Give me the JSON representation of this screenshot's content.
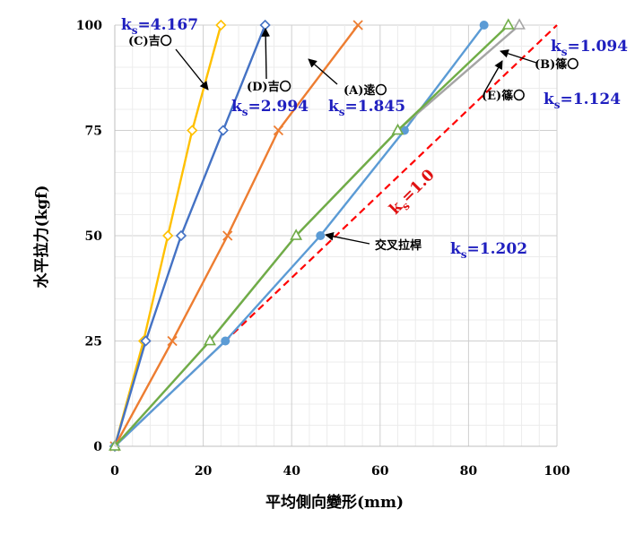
{
  "chart_data": {
    "type": "line",
    "title": "",
    "xlabel": "平均側向變形(mm)",
    "ylabel": "水平拉力(kgf)",
    "xlim": [
      0,
      100
    ],
    "ylim": [
      0,
      100
    ],
    "x_ticks": [
      "0",
      "20",
      "40",
      "60",
      "80",
      "100"
    ],
    "y_ticks": [
      "0",
      "25",
      "50",
      "75",
      "100"
    ],
    "grid": true,
    "series": [
      {
        "name": "(C)吉〇",
        "color": "#ffc000",
        "marker": "diamond",
        "points": [
          [
            0,
            0
          ],
          [
            6.5,
            25
          ],
          [
            12,
            50
          ],
          [
            17.5,
            75
          ],
          [
            24,
            100
          ]
        ]
      },
      {
        "name": "(D)吉〇",
        "color": "#4472c4",
        "marker": "diamond",
        "points": [
          [
            0,
            0
          ],
          [
            7,
            25
          ],
          [
            15,
            50
          ],
          [
            24.5,
            75
          ],
          [
            34,
            100
          ]
        ]
      },
      {
        "name": "(A)逺〇",
        "color": "#ed7d31",
        "marker": "x",
        "points": [
          [
            0,
            0
          ],
          [
            13,
            25
          ],
          [
            25.5,
            50
          ],
          [
            37,
            75
          ],
          [
            55,
            100
          ]
        ]
      },
      {
        "name": "交叉拉桿",
        "color": "#5b9bd5",
        "marker": "circle",
        "points": [
          [
            0,
            0
          ],
          [
            25,
            25
          ],
          [
            46.5,
            50
          ],
          [
            65.5,
            75
          ],
          [
            83.5,
            100
          ]
        ]
      },
      {
        "name": "(B)篠〇",
        "color": "#a5a5a5",
        "marker": "triangle",
        "points": [
          [
            0,
            0
          ],
          [
            21.5,
            25
          ],
          [
            41,
            50
          ],
          [
            64,
            75
          ],
          [
            91.5,
            100
          ]
        ]
      },
      {
        "name": "(E)篠〇",
        "color": "#70ad47",
        "marker": "triangle",
        "points": [
          [
            0,
            0
          ],
          [
            21.5,
            25
          ],
          [
            41,
            50
          ],
          [
            64,
            75
          ],
          [
            89,
            100
          ]
        ]
      }
    ],
    "reference_line": {
      "label_main": "k",
      "label_sub": "s",
      "label_value": "=1.0",
      "color": "#ff0000",
      "dash": true,
      "points": [
        [
          0,
          0
        ],
        [
          100,
          100
        ]
      ]
    },
    "annotations": {
      "ks_c": {
        "main": "k",
        "sub": "s",
        "value": "=4.167"
      },
      "ks_d": {
        "main": "k",
        "sub": "s",
        "value": "=2.994"
      },
      "ks_a": {
        "main": "k",
        "sub": "s",
        "value": "=1.845"
      },
      "ks_b": {
        "main": "k",
        "sub": "s",
        "value": "=1.094"
      },
      "ks_e": {
        "main": "k",
        "sub": "s",
        "value": "=1.124"
      },
      "ks_x": {
        "main": "k",
        "sub": "s",
        "value": "=1.202"
      },
      "label_c": "(C)吉〇",
      "label_d": "(D)吉〇",
      "label_a": "(A)逺〇",
      "label_b": "(B)篠〇",
      "label_e": "(E)篠〇",
      "label_x": "交叉拉桿"
    }
  }
}
